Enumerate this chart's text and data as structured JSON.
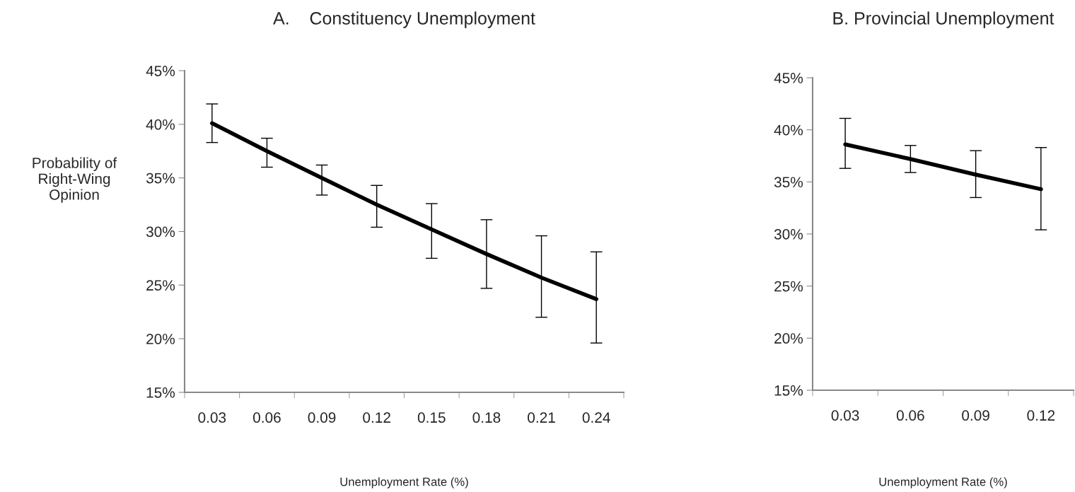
{
  "chart_data": [
    {
      "type": "line",
      "title": "A.    Constituency Unemployment",
      "xlabel": "Unemployment Rate (%)",
      "ylabel": "Probability of\nRight-Wing\nOpinion",
      "categories": [
        "0.03",
        "0.06",
        "0.09",
        "0.12",
        "0.15",
        "0.18",
        "0.21",
        "0.24"
      ],
      "series": [
        {
          "color": "#000000",
          "values": [
            40.1,
            37.5,
            35.0,
            32.5,
            30.2,
            27.9,
            25.7,
            23.7
          ],
          "errors": [
            [
              38.3,
              41.9
            ],
            [
              36.0,
              38.7
            ],
            [
              33.4,
              36.2
            ],
            [
              30.4,
              34.3
            ],
            [
              27.5,
              32.6
            ],
            [
              24.7,
              31.1
            ],
            [
              22.0,
              29.6
            ],
            [
              19.6,
              28.1
            ]
          ]
        }
      ],
      "ylim": [
        15,
        45
      ],
      "yticks": [
        {
          "value": 15,
          "label": "15%"
        },
        {
          "value": 20,
          "label": "20%"
        },
        {
          "value": 25,
          "label": "25%"
        },
        {
          "value": 30,
          "label": "30%"
        },
        {
          "value": 35,
          "label": "35%"
        },
        {
          "value": 40,
          "label": "40%"
        },
        {
          "value": 45,
          "label": "45%"
        }
      ],
      "grid": false,
      "legend": false,
      "marker": "none",
      "line_style": "solid"
    },
    {
      "type": "line",
      "title": "B. Provincial Unemployment",
      "xlabel": "Unemployment Rate (%)",
      "categories": [
        "0.03",
        "0.06",
        "0.09",
        "0.12"
      ],
      "series": [
        {
          "color": "#000000",
          "values": [
            38.6,
            37.2,
            35.7,
            34.3
          ],
          "errors": [
            [
              36.3,
              41.1
            ],
            [
              35.9,
              38.5
            ],
            [
              33.5,
              38.0
            ],
            [
              30.4,
              38.3
            ]
          ]
        }
      ],
      "ylim": [
        15,
        45
      ],
      "yticks": [
        {
          "value": 15,
          "label": "15%"
        },
        {
          "value": 20,
          "label": "20%"
        },
        {
          "value": 25,
          "label": "25%"
        },
        {
          "value": 30,
          "label": "30%"
        },
        {
          "value": 35,
          "label": "35%"
        },
        {
          "value": 40,
          "label": "40%"
        },
        {
          "value": 45,
          "label": "45%"
        }
      ],
      "grid": false,
      "legend": false,
      "marker": "none",
      "line_style": "solid"
    }
  ]
}
